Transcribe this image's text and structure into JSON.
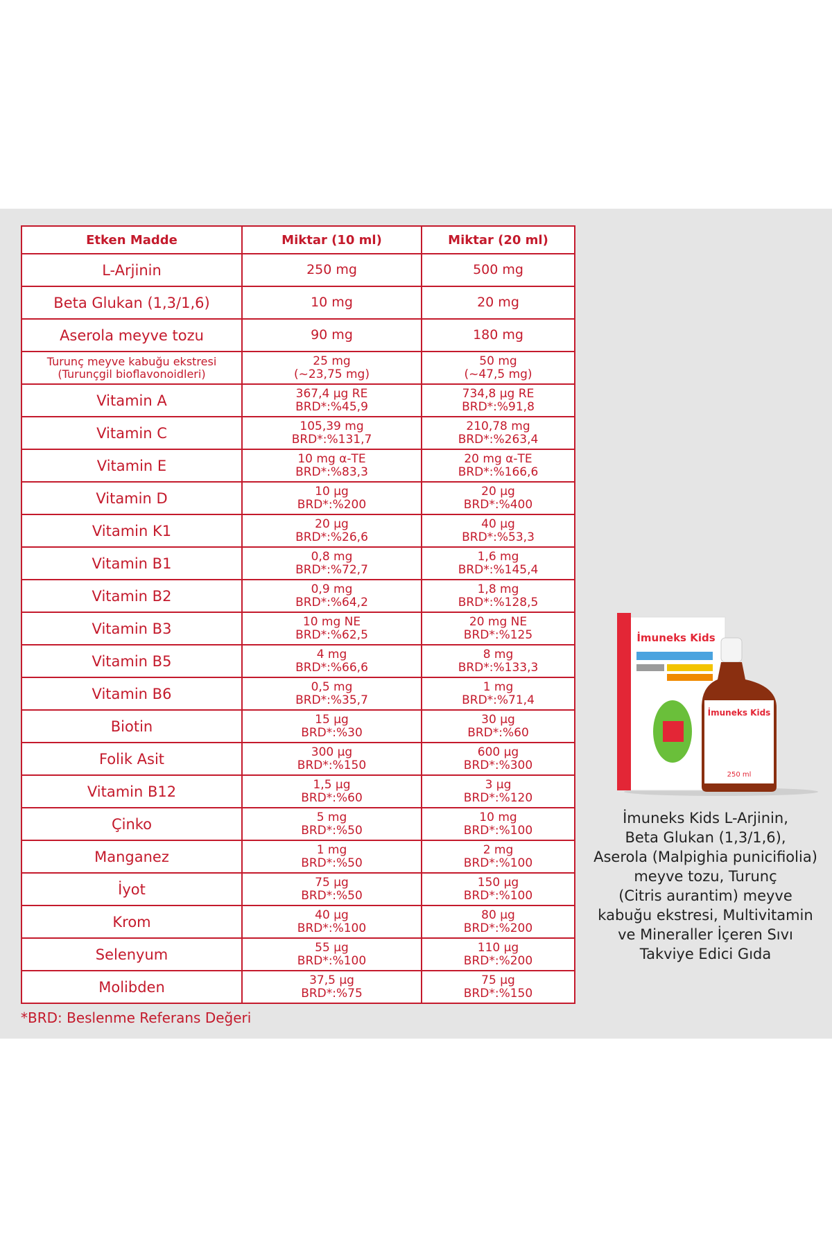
{
  "table": {
    "header": [
      "Etken Madde",
      "Miktar (10 ml)",
      "Miktar (20 ml)"
    ],
    "rows": [
      {
        "name": "L-Arjinin",
        "amount_10ml": [
          "250 mg"
        ],
        "amount_20ml": [
          "500 mg"
        ]
      },
      {
        "name": "Beta Glukan (1,3/1,6)",
        "amount_10ml": [
          "10 mg"
        ],
        "amount_20ml": [
          "20 mg"
        ]
      },
      {
        "name": "Aserola meyve tozu",
        "amount_10ml": [
          "90 mg"
        ],
        "amount_20ml": [
          "180 mg"
        ]
      },
      {
        "name": "Turunç meyve kabuğu ekstresi (Turunçgil bioflavonoidleri)",
        "amount_10ml": [
          "25 mg",
          "(~23,75 mg)"
        ],
        "amount_20ml": [
          "50 mg",
          "(~47,5 mg)"
        ]
      },
      {
        "name": "Vitamin A",
        "amount_10ml": [
          "367,4 µg RE",
          "BRD*:%45,9"
        ],
        "amount_20ml": [
          "734,8 µg RE",
          "BRD*:%91,8"
        ]
      },
      {
        "name": "Vitamin C",
        "amount_10ml": [
          "105,39 mg",
          "BRD*:%131,7"
        ],
        "amount_20ml": [
          "210,78 mg",
          "BRD*:%263,4"
        ]
      },
      {
        "name": "Vitamin E",
        "amount_10ml": [
          "10 mg α-TE",
          "BRD*:%83,3"
        ],
        "amount_20ml": [
          "20 mg α-TE",
          "BRD*:%166,6"
        ]
      },
      {
        "name": "Vitamin D",
        "amount_10ml": [
          "10 µg",
          "BRD*:%200"
        ],
        "amount_20ml": [
          "20 µg",
          "BRD*:%400"
        ]
      },
      {
        "name": "Vitamin K1",
        "amount_10ml": [
          "20 µg",
          "BRD*:%26,6"
        ],
        "amount_20ml": [
          "40 µg",
          "BRD*:%53,3"
        ]
      },
      {
        "name": "Vitamin B1",
        "amount_10ml": [
          "0,8 mg",
          "BRD*:%72,7"
        ],
        "amount_20ml": [
          "1,6 mg",
          "BRD*:%145,4"
        ]
      },
      {
        "name": "Vitamin B2",
        "amount_10ml": [
          "0,9 mg",
          "BRD*:%64,2"
        ],
        "amount_20ml": [
          "1,8 mg",
          "BRD*:%128,5"
        ]
      },
      {
        "name": "Vitamin B3",
        "amount_10ml": [
          "10 mg NE",
          "BRD*:%62,5"
        ],
        "amount_20ml": [
          "20 mg NE",
          "BRD*:%125"
        ]
      },
      {
        "name": "Vitamin B5",
        "amount_10ml": [
          "4 mg",
          "BRD*:%66,6"
        ],
        "amount_20ml": [
          "8 mg",
          "BRD*:%133,3"
        ]
      },
      {
        "name": "Vitamin B6",
        "amount_10ml": [
          "0,5 mg",
          "BRD*:%35,7"
        ],
        "amount_20ml": [
          "1 mg",
          "BRD*:%71,4"
        ]
      },
      {
        "name": "Biotin",
        "amount_10ml": [
          "15 µg",
          "BRD*:%30"
        ],
        "amount_20ml": [
          "30 µg",
          "BRD*:%60"
        ]
      },
      {
        "name": "Folik Asit",
        "amount_10ml": [
          "300 µg",
          "BRD*:%150"
        ],
        "amount_20ml": [
          "600 µg",
          "BRD*:%300"
        ]
      },
      {
        "name": "Vitamin B12",
        "amount_10ml": [
          "1,5 µg",
          "BRD*:%60"
        ],
        "amount_20ml": [
          "3 µg",
          "BRD*:%120"
        ]
      },
      {
        "name": "Çinko",
        "amount_10ml": [
          "5 mg",
          "BRD*:%50"
        ],
        "amount_20ml": [
          "10 mg",
          "BRD*:%100"
        ]
      },
      {
        "name": "Manganez",
        "amount_10ml": [
          "1 mg",
          "BRD*:%50"
        ],
        "amount_20ml": [
          "2 mg",
          "BRD*:%100"
        ]
      },
      {
        "name": "İyot",
        "amount_10ml": [
          "75 µg",
          "BRD*:%50"
        ],
        "amount_20ml": [
          "150 µg",
          "BRD*:%100"
        ]
      },
      {
        "name": "Krom",
        "amount_10ml": [
          "40 µg",
          "BRD*:%100"
        ],
        "amount_20ml": [
          "80 µg",
          "BRD*:%200"
        ]
      },
      {
        "name": "Selenyum",
        "amount_10ml": [
          "55 µg",
          "BRD*:%100"
        ],
        "amount_20ml": [
          "110 µg",
          "BRD*:%200"
        ]
      },
      {
        "name": "Molibden",
        "amount_10ml": [
          "37,5 µg",
          "BRD*:%75"
        ],
        "amount_20ml": [
          "75 µg",
          "BRD*:%150"
        ]
      }
    ]
  },
  "footnote": "*BRD: Beslenme Referans Değeri",
  "product": {
    "brand": "İmuneks Kids",
    "volume": "250 ml",
    "caption": [
      "İmuneks Kids L-Arjinin,",
      "Beta Glukan (1,3/1,6),",
      "Aserola (Malpighia punicifiolia)",
      "meyve tozu, Turunç",
      "(Citris aurantim) meyve",
      "kabuğu ekstresi, Multivitamin",
      "ve Mineraller İçeren Sıvı",
      "Takviye Edici Gıda"
    ]
  }
}
